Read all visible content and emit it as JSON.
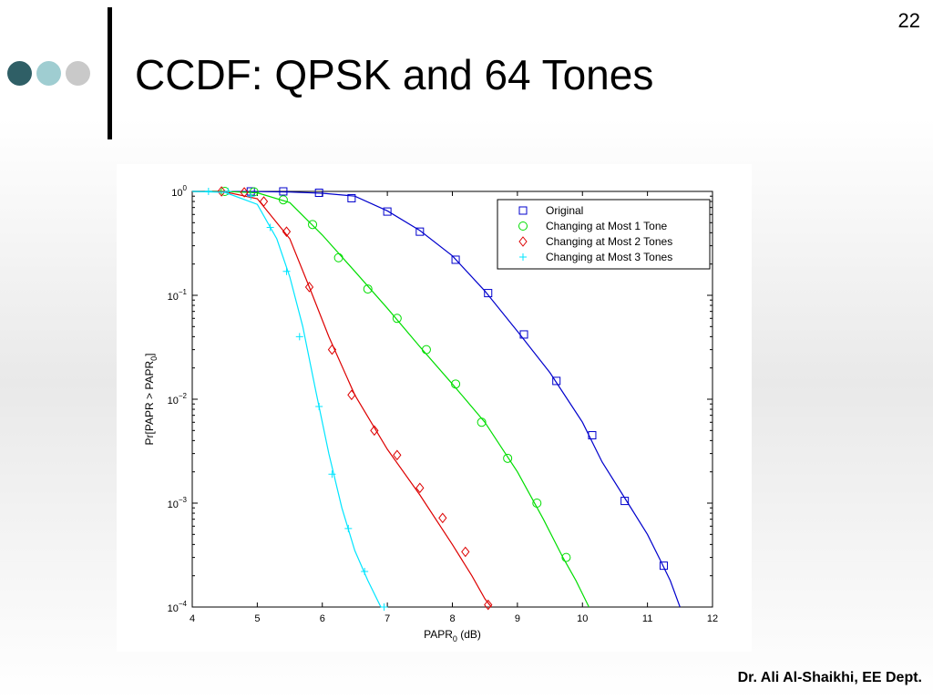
{
  "slide": {
    "number": "22",
    "title": "CCDF: QPSK and 64 Tones",
    "footer": "Dr. Ali Al-Shaikhi, EE Dept."
  },
  "colors": {
    "dot1": "#2f5f66",
    "dot2": "#9fcdd1",
    "dot3": "#c9c9c9"
  },
  "chart_data": {
    "type": "line",
    "xlabel": "PAPR",
    "xlabel_sub": "0",
    "xlabel_unit": " (dB)",
    "ylabel": "Pr[PAPR > PAPR",
    "ylabel_sub": "0",
    "ylabel_end": "]",
    "xlim": [
      4,
      12
    ],
    "ylim": [
      0.0001,
      1
    ],
    "yscale": "log",
    "grid": false,
    "legend_position": "top-right",
    "xticks": [
      4,
      5,
      6,
      7,
      8,
      9,
      10,
      11,
      12
    ],
    "yticks": [
      {
        "value": 1,
        "base": "10",
        "exp": "0"
      },
      {
        "value": 0.1,
        "base": "10",
        "exp": "−1"
      },
      {
        "value": 0.01,
        "base": "10",
        "exp": "−2"
      },
      {
        "value": 0.001,
        "base": "10",
        "exp": "−3"
      },
      {
        "value": 0.0001,
        "base": "10",
        "exp": "−4"
      }
    ],
    "series": [
      {
        "name": "Original",
        "color": "#0000cc",
        "marker": "square",
        "points": [
          [
            4.0,
            1.0
          ],
          [
            4.5,
            1.0
          ],
          [
            5.0,
            0.995
          ],
          [
            5.5,
            0.985
          ],
          [
            6.0,
            0.96
          ],
          [
            6.5,
            0.9
          ],
          [
            7.0,
            0.65
          ],
          [
            7.5,
            0.42
          ],
          [
            8.0,
            0.24
          ],
          [
            8.5,
            0.11
          ],
          [
            9.0,
            0.045
          ],
          [
            9.5,
            0.018
          ],
          [
            10.0,
            0.006
          ],
          [
            10.3,
            0.0025
          ],
          [
            10.7,
            0.001
          ],
          [
            11.0,
            0.0005
          ],
          [
            11.2,
            0.00028
          ],
          [
            11.35,
            0.00018
          ],
          [
            11.5,
            0.0001
          ]
        ],
        "markers": [
          [
            4.9,
            1.0
          ],
          [
            5.4,
            1.0
          ],
          [
            5.95,
            0.97
          ],
          [
            6.45,
            0.86
          ],
          [
            7.0,
            0.64
          ],
          [
            7.5,
            0.41
          ],
          [
            8.05,
            0.22
          ],
          [
            8.55,
            0.105
          ],
          [
            9.1,
            0.042
          ],
          [
            9.6,
            0.015
          ],
          [
            10.15,
            0.0045
          ],
          [
            10.65,
            0.00105
          ],
          [
            11.25,
            0.00025
          ]
        ]
      },
      {
        "name": "Changing at Most 1 Tone",
        "color": "#00dd00",
        "marker": "circle",
        "points": [
          [
            4.0,
            1.0
          ],
          [
            4.5,
            1.0
          ],
          [
            5.0,
            0.97
          ],
          [
            5.5,
            0.78
          ],
          [
            6.0,
            0.38
          ],
          [
            6.5,
            0.17
          ],
          [
            7.0,
            0.075
          ],
          [
            7.5,
            0.032
          ],
          [
            8.0,
            0.014
          ],
          [
            8.5,
            0.006
          ],
          [
            9.0,
            0.002
          ],
          [
            9.4,
            0.0007
          ],
          [
            9.7,
            0.0003
          ],
          [
            9.9,
            0.00018
          ],
          [
            10.1,
            0.0001
          ]
        ],
        "markers": [
          [
            4.5,
            1.0
          ],
          [
            4.95,
            0.99
          ],
          [
            5.4,
            0.83
          ],
          [
            5.85,
            0.48
          ],
          [
            6.25,
            0.23
          ],
          [
            6.7,
            0.115
          ],
          [
            7.15,
            0.06
          ],
          [
            7.6,
            0.03
          ],
          [
            8.05,
            0.014
          ],
          [
            8.45,
            0.006
          ],
          [
            8.85,
            0.0027
          ],
          [
            9.3,
            0.001
          ],
          [
            9.75,
            0.0003
          ]
        ]
      },
      {
        "name": "Changing at Most 2 Tones",
        "color": "#dd0000",
        "marker": "diamond",
        "points": [
          [
            4.0,
            1.0
          ],
          [
            4.5,
            0.99
          ],
          [
            5.0,
            0.85
          ],
          [
            5.5,
            0.35
          ],
          [
            5.8,
            0.12
          ],
          [
            6.1,
            0.04
          ],
          [
            6.5,
            0.011
          ],
          [
            7.0,
            0.0033
          ],
          [
            7.5,
            0.0012
          ],
          [
            8.0,
            0.0004
          ],
          [
            8.3,
            0.0002
          ],
          [
            8.5,
            0.00012
          ],
          [
            8.6,
            0.0001
          ]
        ],
        "markers": [
          [
            4.45,
            1.0
          ],
          [
            4.8,
            0.98
          ],
          [
            5.1,
            0.8
          ],
          [
            5.45,
            0.41
          ],
          [
            5.8,
            0.12
          ],
          [
            6.15,
            0.03
          ],
          [
            6.45,
            0.011
          ],
          [
            6.8,
            0.005
          ],
          [
            7.15,
            0.0029
          ],
          [
            7.5,
            0.0014
          ],
          [
            7.85,
            0.00072
          ],
          [
            8.2,
            0.00034
          ],
          [
            8.55,
            0.000105
          ]
        ]
      },
      {
        "name": "Changing at Most 3 Tones",
        "color": "#00e5ff",
        "marker": "plus",
        "points": [
          [
            4.0,
            1.0
          ],
          [
            4.5,
            0.98
          ],
          [
            5.0,
            0.75
          ],
          [
            5.3,
            0.35
          ],
          [
            5.5,
            0.15
          ],
          [
            5.7,
            0.05
          ],
          [
            5.9,
            0.012
          ],
          [
            6.1,
            0.003
          ],
          [
            6.3,
            0.0009
          ],
          [
            6.5,
            0.00035
          ],
          [
            6.7,
            0.00018
          ],
          [
            6.9,
            0.0001
          ]
        ],
        "markers": [
          [
            4.25,
            1.0
          ],
          [
            4.55,
            1.0
          ],
          [
            4.9,
            0.9
          ],
          [
            5.2,
            0.45
          ],
          [
            5.45,
            0.17
          ],
          [
            5.65,
            0.04
          ],
          [
            5.95,
            0.0085
          ],
          [
            6.15,
            0.0019
          ],
          [
            6.4,
            0.00057
          ],
          [
            6.65,
            0.00022
          ],
          [
            6.95,
            0.0001
          ]
        ]
      }
    ]
  }
}
